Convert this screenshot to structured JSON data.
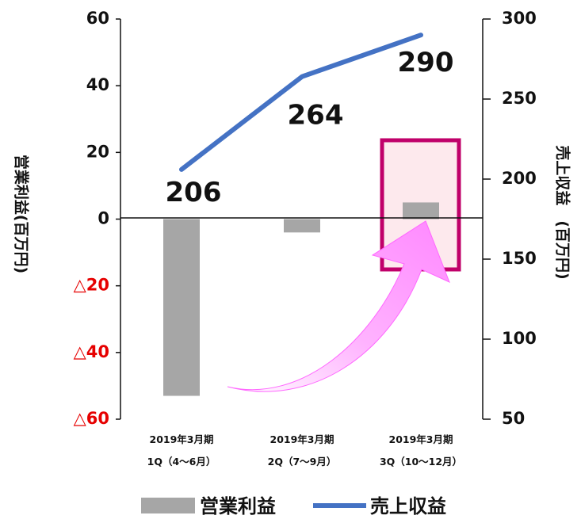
{
  "chart_data": {
    "type": "bar+line",
    "categories": [
      [
        "2019年3月期",
        "1Q（4〜6月）"
      ],
      [
        "2019年3月期",
        "2Q（7〜9月）"
      ],
      [
        "2019年3月期",
        "3Q（10〜12月）"
      ]
    ],
    "left_axis": {
      "label": "営業利益(百万円)",
      "ylim": [
        -60,
        60
      ],
      "ticks": [
        60,
        40,
        20,
        0,
        -20,
        -40,
        -60
      ],
      "tick_labels": [
        "60",
        "40",
        "20",
        "0",
        "△20",
        "△40",
        "△60"
      ]
    },
    "right_axis": {
      "label": "売上収益　(百万円)",
      "ylim": [
        50,
        300
      ],
      "ticks": [
        300,
        250,
        200,
        150,
        100,
        50
      ],
      "tick_labels": [
        "300",
        "250",
        "200",
        "150",
        "100",
        "50"
      ]
    },
    "series": [
      {
        "name": "営業利益",
        "type": "bar",
        "axis": "left",
        "color": "#a6a6a6",
        "values": [
          -53,
          -4,
          5
        ]
      },
      {
        "name": "売上収益",
        "type": "line",
        "axis": "right",
        "color": "#4472c4",
        "values": [
          206,
          264,
          290
        ],
        "data_labels": [
          "206",
          "264",
          "290"
        ]
      }
    ],
    "annotations": {
      "highlight_color": "#c0006a",
      "arrow_color": "#ff99ff"
    },
    "legend": "bottom",
    "grid": false
  }
}
